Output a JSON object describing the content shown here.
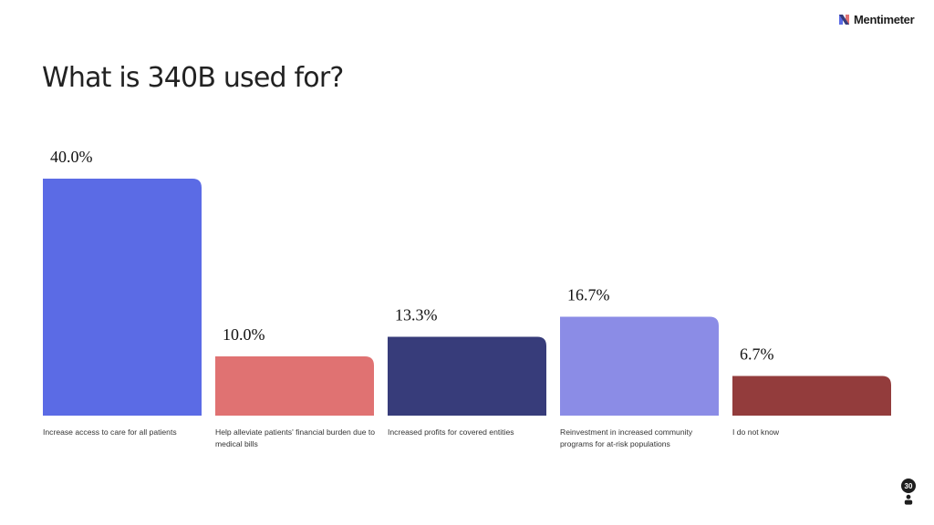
{
  "brand": {
    "name": "Mentimeter"
  },
  "participants": {
    "count": "30"
  },
  "chart_data": {
    "type": "bar",
    "title": "What is 340B used for?",
    "categories": [
      "Increase access to care for all patients",
      "Help alleviate patients' financial burden due to medical bills",
      "Increased profits for covered entities",
      "Reinvestment in increased community programs for at-risk populations",
      "I do not know"
    ],
    "values": [
      40.0,
      10.0,
      13.3,
      16.7,
      6.7
    ],
    "value_labels": [
      "40.0%",
      "10.0%",
      "13.3%",
      "16.7%",
      "6.7%"
    ],
    "colors": [
      "#5b6be5",
      "#e07272",
      "#373c7a",
      "#8b8ce6",
      "#933c3c"
    ],
    "ylim": [
      0,
      40
    ],
    "grid": false,
    "legend": "none"
  }
}
